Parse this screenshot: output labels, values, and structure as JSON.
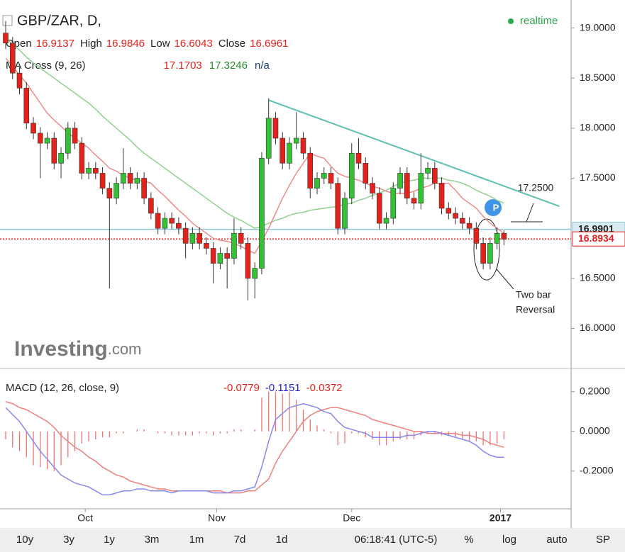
{
  "chart_data": [
    {
      "type": "candlestick",
      "title": "GBP/ZAR, D,",
      "ohlc": [
        {
          "label": "Open",
          "value": 16.9137
        },
        {
          "label": "High",
          "value": 16.9846
        },
        {
          "label": "Low",
          "value": 16.6043
        },
        {
          "label": "Close",
          "value": 16.6961
        }
      ],
      "indicator": {
        "name": "MA Cross (9, 26)",
        "values": [
          17.1703,
          17.3246,
          "n/a"
        ]
      },
      "realtime": "realtime",
      "watermark": [
        "Investing",
        ".com"
      ],
      "up_color": "#33c233",
      "down_color": "#e3231b",
      "open": [
        18.95,
        18.85,
        18.55,
        18.4,
        18.05,
        17.95,
        17.85,
        17.9,
        17.65,
        17.75,
        18.0,
        17.85,
        17.55,
        17.6,
        17.55,
        17.4,
        17.3,
        17.45,
        17.55,
        17.45,
        17.5,
        17.3,
        17.15,
        17.0,
        17.1,
        17.05,
        17.0,
        16.85,
        16.95,
        16.85,
        16.8,
        16.65,
        16.75,
        16.7,
        16.95,
        16.85,
        16.5,
        16.6,
        17.7,
        18.1,
        17.9,
        17.65,
        17.85,
        17.9,
        17.75,
        17.4,
        17.5,
        17.55,
        17.45,
        17.0,
        17.3,
        17.75,
        17.65,
        17.45,
        17.35,
        17.05,
        17.1,
        17.4,
        17.55,
        17.3,
        17.25,
        17.55,
        17.6,
        17.45,
        17.2,
        17.15,
        17.1,
        17.05,
        17.0,
        16.85,
        16.65,
        16.85,
        16.95
      ],
      "high": [
        19.07,
        18.91,
        18.61,
        18.46,
        18.11,
        18.01,
        17.96,
        17.96,
        17.81,
        18.06,
        18.06,
        17.91,
        17.66,
        17.66,
        17.61,
        17.46,
        17.51,
        17.8,
        17.61,
        17.56,
        17.56,
        17.36,
        17.21,
        17.16,
        17.16,
        17.11,
        17.06,
        17.01,
        17.01,
        16.91,
        16.86,
        16.81,
        16.81,
        17.1,
        17.01,
        16.91,
        16.66,
        17.76,
        18.3,
        18.16,
        17.96,
        17.91,
        18.16,
        17.96,
        17.81,
        17.56,
        17.61,
        17.61,
        17.51,
        17.36,
        17.85,
        17.9,
        17.71,
        17.51,
        17.41,
        17.16,
        17.46,
        17.61,
        17.61,
        17.36,
        17.75,
        17.66,
        17.66,
        17.51,
        17.26,
        17.21,
        17.16,
        17.11,
        17.06,
        16.91,
        16.91,
        17.01,
        16.98
      ],
      "low": [
        18.79,
        18.49,
        18.34,
        17.99,
        17.89,
        17.5,
        17.79,
        17.59,
        17.5,
        17.69,
        17.79,
        17.49,
        17.49,
        17.49,
        17.34,
        16.4,
        17.24,
        17.39,
        17.39,
        17.39,
        17.24,
        17.09,
        16.94,
        16.94,
        16.99,
        16.94,
        16.7,
        16.79,
        16.79,
        16.74,
        16.45,
        16.59,
        16.4,
        16.64,
        16.79,
        16.28,
        16.3,
        16.54,
        17.64,
        17.84,
        17.59,
        17.59,
        17.79,
        17.69,
        17.3,
        17.34,
        17.44,
        17.39,
        16.94,
        16.94,
        17.24,
        17.59,
        17.39,
        17.29,
        16.99,
        16.99,
        17.04,
        17.34,
        17.24,
        17.19,
        17.19,
        17.49,
        17.39,
        17.14,
        17.09,
        17.04,
        16.99,
        16.94,
        16.79,
        16.59,
        16.59,
        16.79,
        16.83
      ],
      "close": [
        18.85,
        18.55,
        18.4,
        18.05,
        17.95,
        17.85,
        17.9,
        17.65,
        17.75,
        18.0,
        17.85,
        17.55,
        17.6,
        17.55,
        17.4,
        17.3,
        17.45,
        17.55,
        17.45,
        17.5,
        17.3,
        17.15,
        17.0,
        17.1,
        17.05,
        17.0,
        16.85,
        16.95,
        16.85,
        16.8,
        16.65,
        16.75,
        16.7,
        16.95,
        16.85,
        16.5,
        16.6,
        17.7,
        18.1,
        17.9,
        17.65,
        17.85,
        17.9,
        17.75,
        17.4,
        17.5,
        17.55,
        17.45,
        17.0,
        17.3,
        17.75,
        17.65,
        17.45,
        17.35,
        17.05,
        17.1,
        17.4,
        17.55,
        17.3,
        17.25,
        17.55,
        17.6,
        17.45,
        17.2,
        17.15,
        17.1,
        17.05,
        17.0,
        16.85,
        16.65,
        16.85,
        16.95,
        16.89
      ],
      "ma_fast": {
        "color": "#f08a8a",
        "values": [
          18.7,
          18.62,
          18.53,
          18.45,
          18.35,
          18.25,
          18.15,
          18.08,
          18.02,
          17.95,
          17.9,
          17.85,
          17.8,
          17.73,
          17.67,
          17.6,
          17.57,
          17.53,
          17.5,
          17.48,
          17.47,
          17.45,
          17.38,
          17.32,
          17.25,
          17.18,
          17.12,
          17.05,
          17.0,
          16.95,
          16.9,
          16.88,
          16.87,
          16.85,
          16.82,
          16.78,
          16.75,
          16.87,
          17.0,
          17.15,
          17.3,
          17.43,
          17.55,
          17.65,
          17.75,
          17.72,
          17.7,
          17.62,
          17.55,
          17.52,
          17.5,
          17.48,
          17.45,
          17.42,
          17.4,
          17.37,
          17.35,
          17.35,
          17.35,
          17.37,
          17.4,
          17.42,
          17.45,
          17.45,
          17.45,
          17.38,
          17.3,
          17.25,
          17.2,
          17.12,
          17.05,
          17.0,
          16.95
        ]
      },
      "ma_slow": {
        "color": "#8fd18f",
        "values": [
          18.9,
          18.84,
          18.78,
          18.71,
          18.65,
          18.6,
          18.55,
          18.5,
          18.45,
          18.4,
          18.35,
          18.3,
          18.25,
          18.19,
          18.12,
          18.06,
          18.0,
          17.94,
          17.88,
          17.81,
          17.75,
          17.7,
          17.65,
          17.6,
          17.55,
          17.5,
          17.45,
          17.4,
          17.35,
          17.3,
          17.25,
          17.2,
          17.15,
          17.11,
          17.08,
          17.04,
          17.0,
          17.02,
          17.05,
          17.08,
          17.1,
          17.13,
          17.15,
          17.16,
          17.18,
          17.19,
          17.2,
          17.21,
          17.22,
          17.24,
          17.25,
          17.28,
          17.3,
          17.33,
          17.35,
          17.38,
          17.42,
          17.45,
          17.47,
          17.48,
          17.5,
          17.5,
          17.5,
          17.5,
          17.48,
          17.47,
          17.45,
          17.42,
          17.38,
          17.35,
          17.32,
          17.28,
          17.25
        ]
      },
      "trendline": {
        "color": "#5fbfb0",
        "start": [
          38,
          18.28
        ],
        "end": [
          80,
          17.22
        ]
      },
      "hlines": [
        {
          "value": 16.9901,
          "color": "#8cc8d8",
          "style": "solid"
        },
        {
          "value": 16.8934,
          "color": "#e02020",
          "style": "dotted"
        }
      ],
      "annotations": [
        "17.2500",
        "Two bar",
        "Reversal"
      ],
      "event_marker": "P",
      "xlim": [
        -0.82,
        81.7
      ],
      "ylim": [
        15.6,
        19.28
      ],
      "yticks": [
        {
          "value": 19,
          "label": "19.0000"
        },
        {
          "value": 18.5,
          "label": "18.5000"
        },
        {
          "value": 18,
          "label": "18.0000"
        },
        {
          "value": 17.5,
          "label": "17.5000"
        },
        {
          "value": 16.5,
          "label": "16.5000"
        },
        {
          "value": 16,
          "label": "16.0000"
        }
      ],
      "xticks": [
        {
          "value": 11.5,
          "label": "Oct"
        },
        {
          "value": 30.5,
          "label": "Nov"
        },
        {
          "value": 50,
          "label": "Dec"
        },
        {
          "value": 71.5,
          "label": "2017"
        }
      ],
      "grid": false
    },
    {
      "type": "macd",
      "title": "MACD (12, 26, close, 9)",
      "readout": [
        -0.0779,
        -0.1151,
        -0.0372
      ],
      "histogram": {
        "color": "#f07070",
        "values": [
          -0.04,
          -0.08,
          -0.1,
          -0.13,
          -0.17,
          -0.18,
          -0.19,
          -0.2,
          -0.17,
          -0.13,
          -0.1,
          -0.06,
          -0.05,
          -0.04,
          -0.03,
          -0.03,
          -0.01,
          -0.01,
          0.0,
          0.01,
          0.01,
          0.0,
          -0.01,
          -0.01,
          -0.02,
          -0.02,
          -0.02,
          -0.02,
          -0.01,
          -0.01,
          -0.02,
          -0.01,
          -0.01,
          0.01,
          0.01,
          0.0,
          0.01,
          0.17,
          0.2,
          0.2,
          0.19,
          0.2,
          0.16,
          0.11,
          0.06,
          0.03,
          0.01,
          -0.01,
          -0.07,
          -0.06,
          -0.01,
          -0.01,
          -0.03,
          -0.04,
          -0.07,
          -0.07,
          -0.05,
          -0.04,
          -0.04,
          -0.04,
          -0.02,
          -0.01,
          -0.01,
          -0.02,
          -0.02,
          -0.03,
          -0.04,
          -0.05,
          -0.05,
          -0.07,
          -0.07,
          -0.06,
          -0.04
        ]
      },
      "macd": {
        "color": "#8888ee",
        "values": [
          0.12,
          0.085,
          0.05,
          0.0,
          -0.05,
          -0.1,
          -0.14,
          -0.18,
          -0.22,
          -0.24,
          -0.26,
          -0.27,
          -0.28,
          -0.3,
          -0.32,
          -0.32,
          -0.31,
          -0.3,
          -0.3,
          -0.29,
          -0.29,
          -0.3,
          -0.3,
          -0.3,
          -0.31,
          -0.3,
          -0.3,
          -0.3,
          -0.3,
          -0.3,
          -0.31,
          -0.31,
          -0.31,
          -0.3,
          -0.3,
          -0.29,
          -0.28,
          -0.18,
          -0.05,
          0.06,
          0.09,
          0.12,
          0.13,
          0.14,
          0.13,
          0.12,
          0.1,
          0.09,
          0.05,
          0.02,
          0.01,
          0.0,
          -0.01,
          -0.03,
          -0.03,
          -0.03,
          -0.03,
          -0.03,
          -0.02,
          -0.02,
          -0.01,
          0.0,
          0.0,
          -0.01,
          -0.02,
          -0.03,
          -0.04,
          -0.05,
          -0.07,
          -0.1,
          -0.12,
          -0.13,
          -0.13
        ]
      },
      "signal": {
        "color": "#f08080",
        "values": [
          0.15,
          0.14,
          0.12,
          0.11,
          0.09,
          0.07,
          0.05,
          0.02,
          -0.02,
          -0.05,
          -0.08,
          -0.1,
          -0.13,
          -0.15,
          -0.18,
          -0.2,
          -0.22,
          -0.23,
          -0.25,
          -0.26,
          -0.27,
          -0.28,
          -0.29,
          -0.29,
          -0.3,
          -0.3,
          -0.3,
          -0.3,
          -0.3,
          -0.3,
          -0.3,
          -0.3,
          -0.31,
          -0.31,
          -0.31,
          -0.3,
          -0.3,
          -0.27,
          -0.24,
          -0.16,
          -0.1,
          -0.05,
          0.0,
          0.05,
          0.08,
          0.1,
          0.11,
          0.12,
          0.12,
          0.11,
          0.1,
          0.09,
          0.08,
          0.06,
          0.05,
          0.04,
          0.03,
          0.02,
          0.01,
          0.0,
          0.0,
          -0.01,
          -0.01,
          -0.01,
          -0.01,
          -0.01,
          -0.02,
          -0.02,
          -0.03,
          -0.04,
          -0.06,
          -0.07,
          -0.08
        ]
      },
      "ylim": [
        -0.39,
        0.31
      ],
      "yticks": [
        {
          "value": 0.2,
          "label": "0.2000"
        },
        {
          "value": 0,
          "label": "0.0000"
        },
        {
          "value": -0.2,
          "label": "-0.2000"
        }
      ]
    }
  ],
  "toolbar": {
    "ranges": [
      "10y",
      "3y",
      "1y",
      "3m",
      "1m",
      "7d",
      "1d"
    ],
    "time": "06:18:41 (UTC-5)",
    "options": [
      "%",
      "log",
      "auto",
      "SP"
    ]
  }
}
